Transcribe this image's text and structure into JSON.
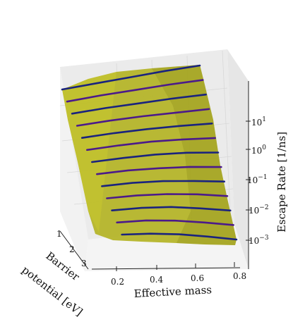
{
  "chart_data": {
    "type": "surface3d",
    "x_label": "Effective mass",
    "y_label": "Barrier potential [eV]",
    "z_label": "Escape Rate [1/ns]",
    "x_ticks": [
      "0.2",
      "0.4",
      "0.6",
      "0.8"
    ],
    "y_ticks": [
      "1",
      "2",
      "3"
    ],
    "z_ticks": [
      "10^{-3}",
      "10^{-2}",
      "10^{-1}",
      "10^{0}",
      "10^{1}"
    ],
    "z_scale": "log",
    "x_range": [
      0.1,
      0.85
    ],
    "y_range": [
      1,
      3
    ],
    "surface_color": "#b5b52a",
    "curve_colors": [
      "#1a237e",
      "#4b1a8a"
    ],
    "curves": [
      {
        "barrier_eV": 1.0,
        "log10_rate": [
          2.1,
          2.2,
          2.3,
          2.4,
          2.45
        ]
      },
      {
        "barrier_eV": 1.17,
        "log10_rate": [
          1.55,
          1.7,
          1.8,
          1.9,
          1.95
        ]
      },
      {
        "barrier_eV": 1.33,
        "log10_rate": [
          1.1,
          1.25,
          1.35,
          1.45,
          1.5
        ]
      },
      {
        "barrier_eV": 1.5,
        "log10_rate": [
          0.65,
          0.8,
          0.9,
          0.95,
          1.0
        ]
      },
      {
        "barrier_eV": 1.67,
        "log10_rate": [
          0.2,
          0.35,
          0.45,
          0.5,
          0.5
        ]
      },
      {
        "barrier_eV": 1.83,
        "log10_rate": [
          -0.2,
          -0.05,
          0.05,
          0.05,
          0.0
        ]
      },
      {
        "barrier_eV": 2.0,
        "log10_rate": [
          -0.6,
          -0.45,
          -0.35,
          -0.35,
          -0.45
        ]
      },
      {
        "barrier_eV": 2.17,
        "log10_rate": [
          -1.0,
          -0.85,
          -0.8,
          -0.8,
          -0.9
        ]
      },
      {
        "barrier_eV": 2.33,
        "log10_rate": [
          -1.4,
          -1.25,
          -1.2,
          -1.25,
          -1.35
        ]
      },
      {
        "barrier_eV": 2.5,
        "log10_rate": [
          -1.8,
          -1.65,
          -1.6,
          -1.65,
          -1.8
        ]
      },
      {
        "barrier_eV": 2.67,
        "log10_rate": [
          -2.2,
          -2.05,
          -2.0,
          -2.1,
          -2.25
        ]
      },
      {
        "barrier_eV": 2.83,
        "log10_rate": [
          -2.6,
          -2.45,
          -2.45,
          -2.55,
          -2.7
        ]
      },
      {
        "barrier_eV": 3.0,
        "log10_rate": [
          -2.95,
          -2.85,
          -2.85,
          -2.95,
          -3.1
        ]
      }
    ]
  }
}
